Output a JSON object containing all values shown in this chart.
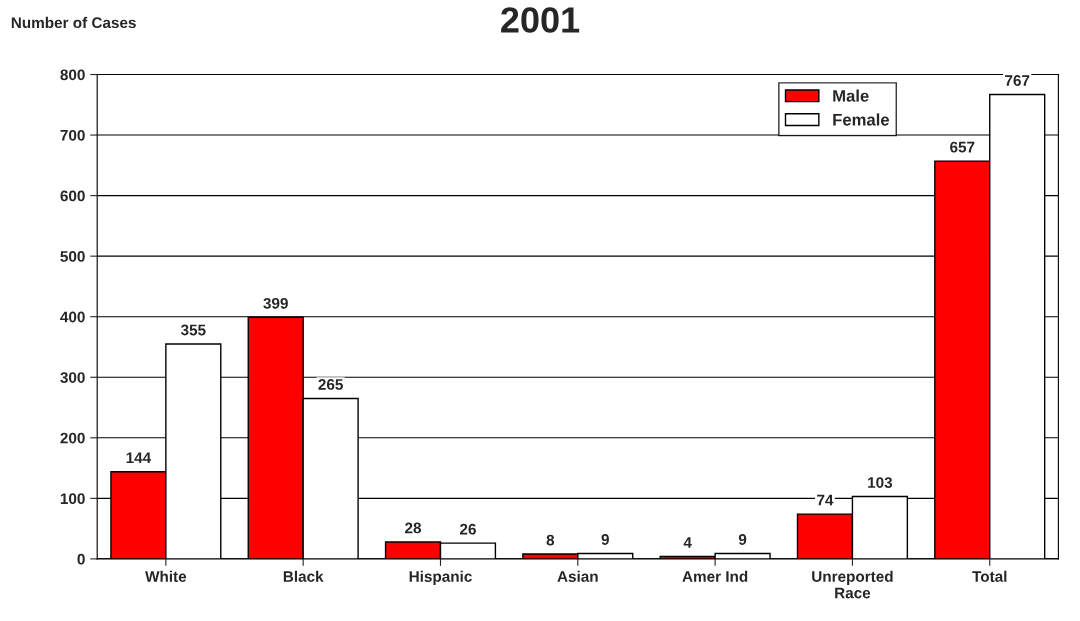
{
  "chart_data": {
    "type": "bar",
    "title": "2001",
    "ylabel": "Number of Cases",
    "categories": [
      "White",
      "Black",
      "Hispanic",
      "Asian",
      "Amer Ind",
      "Unreported\nRace",
      "Total"
    ],
    "series": [
      {
        "name": "Male",
        "color": "#ff0000",
        "values": [
          144,
          399,
          28,
          8,
          4,
          74,
          657
        ]
      },
      {
        "name": "Female",
        "color": "#ffffff",
        "values": [
          355,
          265,
          26,
          9,
          9,
          103,
          767
        ]
      }
    ],
    "ylim": [
      0,
      800
    ],
    "yticks": [
      0,
      100,
      200,
      300,
      400,
      500,
      600,
      700,
      800
    ],
    "grid": "y",
    "legend": "top right",
    "data_labels": true
  }
}
